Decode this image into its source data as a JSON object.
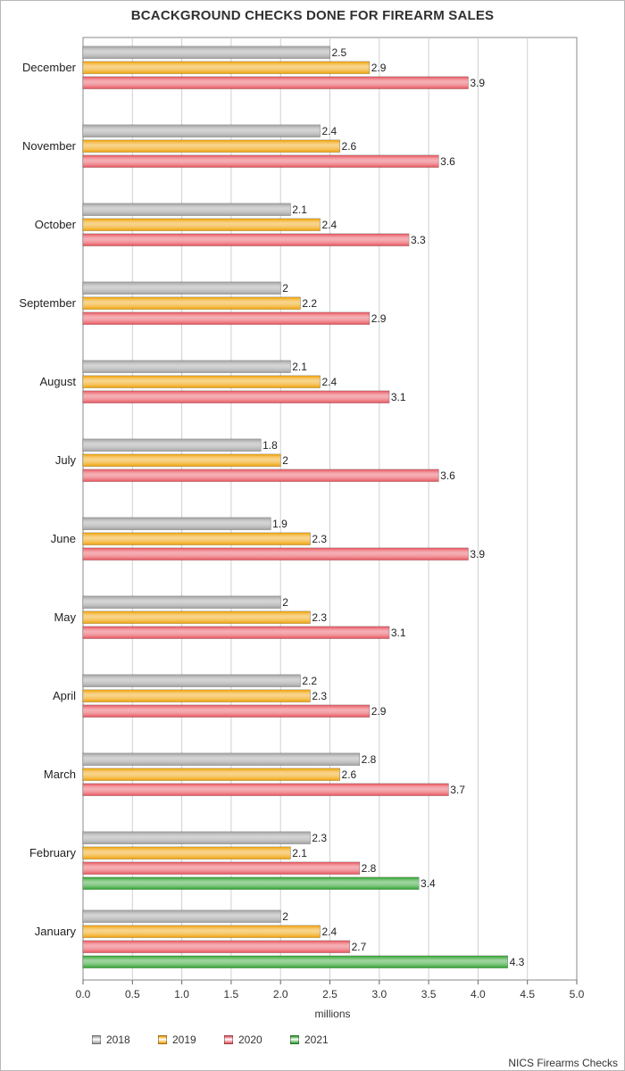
{
  "chart_data": {
    "type": "bar",
    "orientation": "horizontal",
    "title": "BCACKGROUND CHECKS DONE FOR FIREARM SALES",
    "xlabel": "millions",
    "ylabel": "",
    "xlim": [
      0,
      5
    ],
    "xticks": [
      "0.0",
      "0.5",
      "1.0",
      "1.5",
      "2.0",
      "2.5",
      "3.0",
      "3.5",
      "4.0",
      "4.5",
      "5.0"
    ],
    "grid": true,
    "legend_position": "bottom-left",
    "categories": [
      "December",
      "November",
      "October",
      "September",
      "August",
      "July",
      "June",
      "May",
      "April",
      "March",
      "February",
      "January"
    ],
    "series": [
      {
        "name": "2018",
        "color": "#a0a0a0",
        "values": [
          2.5,
          2.4,
          2.1,
          2,
          2.1,
          1.8,
          1.9,
          2,
          2.2,
          2.8,
          2.3,
          2
        ]
      },
      {
        "name": "2019",
        "color": "#f0a000",
        "values": [
          2.9,
          2.6,
          2.4,
          2.2,
          2.4,
          2,
          2.3,
          2.3,
          2.3,
          2.6,
          2.1,
          2.4
        ]
      },
      {
        "name": "2020",
        "color": "#e8505a",
        "values": [
          3.9,
          3.6,
          3.3,
          2.9,
          3.1,
          3.6,
          3.9,
          3.1,
          2.9,
          3.7,
          2.8,
          2.7
        ]
      },
      {
        "name": "2021",
        "color": "#28a028",
        "values": [
          null,
          null,
          null,
          null,
          null,
          null,
          null,
          null,
          null,
          null,
          3.4,
          4.3
        ]
      }
    ],
    "source": "NICS Firearms Checks"
  }
}
